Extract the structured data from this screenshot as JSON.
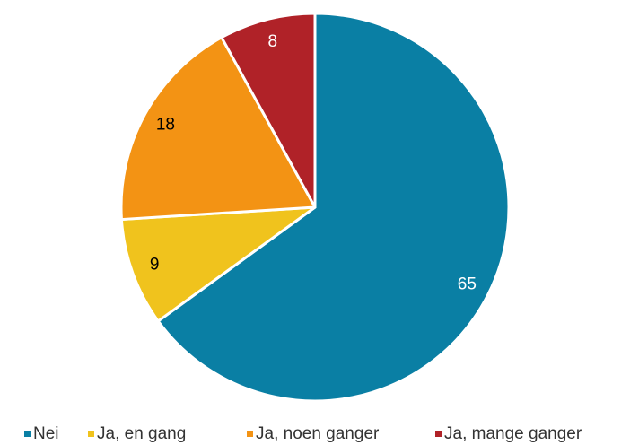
{
  "chart_data": {
    "type": "pie",
    "categories": [
      "Nei",
      "Ja, en gang",
      "Ja, noen ganger",
      "Ja, mange ganger"
    ],
    "values": [
      65,
      9,
      18,
      8
    ],
    "colors": [
      "#0a7fa4",
      "#f0c31d",
      "#f39314",
      "#b02228"
    ],
    "legend": "bottom"
  }
}
